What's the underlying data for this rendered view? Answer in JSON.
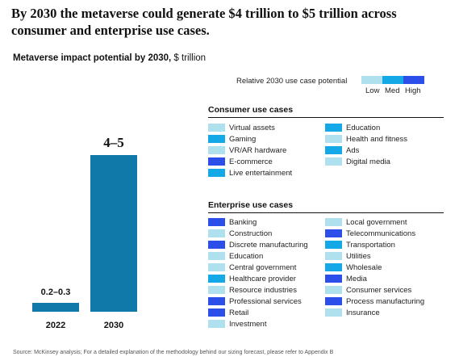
{
  "header": {
    "title": "By 2030 the metaverse could generate $4 trillion to $5 trillion across consumer and enterprise use cases.",
    "chart_title_bold": "Metaverse impact potential by 2030,",
    "chart_title_unit": " $ trillion"
  },
  "colors": {
    "low": "#aee0ee",
    "med": "#15a8e6",
    "high": "#2b4fe8",
    "bar": "#1178aa"
  },
  "legend": {
    "label": "Relative 2030 use case potential",
    "low": "Low",
    "med": "Med",
    "high": "High"
  },
  "chart_data": {
    "type": "bar",
    "title": "Metaverse impact potential by 2030, $ trillion",
    "categories": [
      "2022",
      "2030"
    ],
    "values": [
      0.25,
      4.5
    ],
    "value_labels": [
      "0.2–0.3",
      "4–5"
    ],
    "ylim": [
      0,
      5.3
    ],
    "grid": false,
    "legend_position": "top-right"
  },
  "consumer": {
    "heading": "Consumer use cases",
    "items": [
      {
        "label": "Virtual assets",
        "level": "low"
      },
      {
        "label": "Gaming",
        "level": "med"
      },
      {
        "label": "VR/AR hardware",
        "level": "low"
      },
      {
        "label": "E-commerce",
        "level": "high"
      },
      {
        "label": "Live entertainment",
        "level": "med"
      },
      {
        "label": "Education",
        "level": "med"
      },
      {
        "label": "Health and fitness",
        "level": "low"
      },
      {
        "label": "Ads",
        "level": "med"
      },
      {
        "label": "Digital media",
        "level": "low"
      }
    ]
  },
  "enterprise": {
    "heading": "Enterprise use cases",
    "items": [
      {
        "label": "Banking",
        "level": "high"
      },
      {
        "label": "Construction",
        "level": "low"
      },
      {
        "label": "Discrete manufacturing",
        "level": "high"
      },
      {
        "label": "Education",
        "level": "low"
      },
      {
        "label": "Central government",
        "level": "low"
      },
      {
        "label": "Healthcare provider",
        "level": "med"
      },
      {
        "label": "Resource industries",
        "level": "low"
      },
      {
        "label": "Professional services",
        "level": "high"
      },
      {
        "label": "Retail",
        "level": "high"
      },
      {
        "label": "Investment",
        "level": "low"
      },
      {
        "label": "Local government",
        "level": "low"
      },
      {
        "label": "Telecommunications",
        "level": "high"
      },
      {
        "label": "Transportation",
        "level": "med"
      },
      {
        "label": "Utilities",
        "level": "low"
      },
      {
        "label": "Wholesale",
        "level": "med"
      },
      {
        "label": "Media",
        "level": "high"
      },
      {
        "label": "Consumer services",
        "level": "low"
      },
      {
        "label": "Process manufacturing",
        "level": "high"
      },
      {
        "label": "Insurance",
        "level": "low"
      }
    ]
  },
  "source": "Source: McKinsey analysis; For a detailed explanation of the methodology behind our sizing forecast, please refer to Appendix B"
}
